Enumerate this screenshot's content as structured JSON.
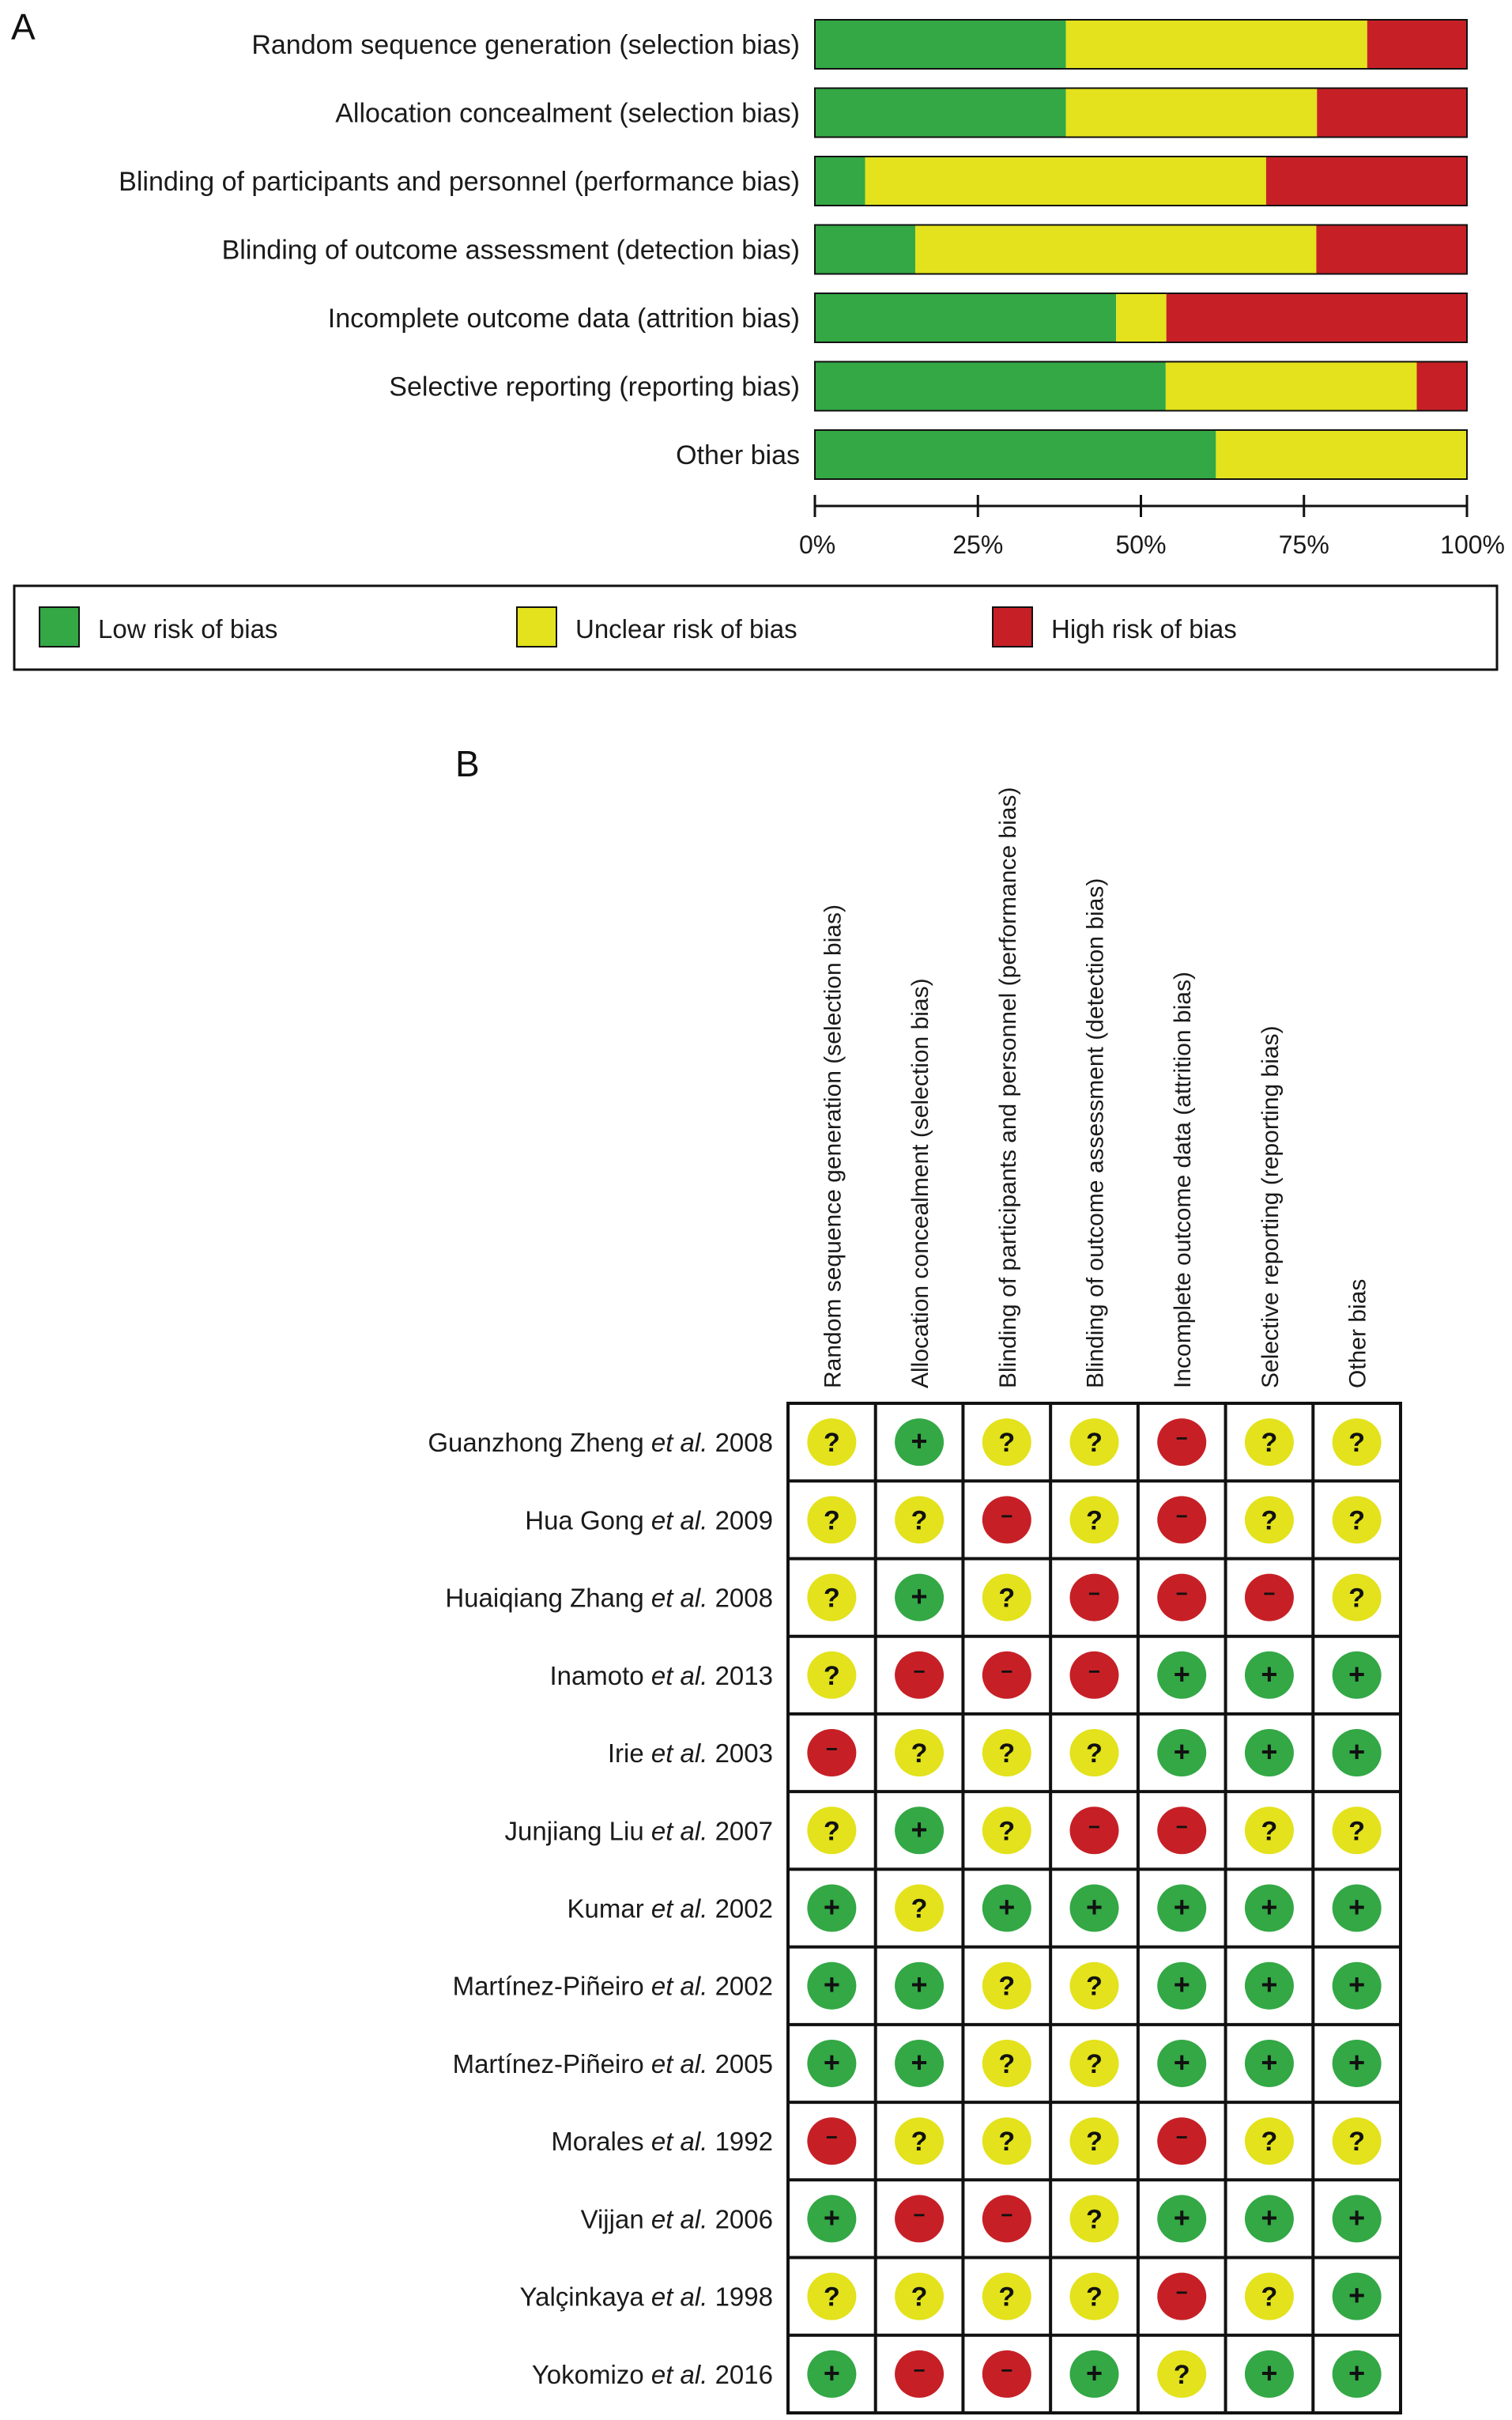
{
  "colors": {
    "low": "#33a845",
    "unclear": "#e3e21c",
    "high": "#c62026",
    "grid": "#111111",
    "text": "#1a1a1a"
  },
  "chart_data": [
    {
      "panel": "A",
      "type": "bar",
      "orientation": "horizontal",
      "stacked": true,
      "categories": [
        "Random sequence generation (selection bias)",
        "Allocation concealment (selection bias)",
        "Blinding of participants and personnel (performance bias)",
        "Blinding of outcome assessment (detection bias)",
        "Incomplete outcome data (attrition bias)",
        "Selective reporting (reporting bias)",
        "Other bias"
      ],
      "series": [
        {
          "name": "Low risk of bias",
          "key": "low",
          "values": [
            38.5,
            38.5,
            7.7,
            15.4,
            46.2,
            53.8,
            61.5
          ]
        },
        {
          "name": "Unclear risk of bias",
          "key": "unclear",
          "values": [
            46.2,
            38.5,
            61.5,
            61.5,
            7.7,
            38.5,
            38.5
          ]
        },
        {
          "name": "High risk of bias",
          "key": "high",
          "values": [
            15.4,
            23.1,
            30.8,
            23.1,
            46.2,
            7.7,
            0
          ]
        }
      ],
      "xlim": [
        0,
        100
      ],
      "xticks": [
        "0%",
        "25%",
        "50%",
        "75%",
        "100%"
      ],
      "legend_position": "bottom"
    },
    {
      "panel": "B",
      "type": "table",
      "columns": [
        "Random sequence generation (selection bias)",
        "Allocation concealment (selection bias)",
        "Blinding of participants and personnel (performance bias)",
        "Blinding of outcome assessment (detection bias)",
        "Incomplete outcome data (attrition bias)",
        "Selective reporting (reporting bias)",
        "Other bias"
      ],
      "legend_symbols": {
        "low": "+",
        "unclear": "?",
        "high": "−"
      },
      "rows": [
        {
          "name": "Guanzhong Zheng",
          "etal": "et al.",
          "year": "2008",
          "ratings": [
            "unclear",
            "low",
            "unclear",
            "unclear",
            "high",
            "unclear",
            "unclear"
          ]
        },
        {
          "name": "Hua Gong",
          "etal": "et al.",
          "year": "2009",
          "ratings": [
            "unclear",
            "unclear",
            "high",
            "unclear",
            "high",
            "unclear",
            "unclear"
          ]
        },
        {
          "name": "Huaiqiang Zhang",
          "etal": "et al.",
          "year": "2008",
          "ratings": [
            "unclear",
            "low",
            "unclear",
            "high",
            "high",
            "high",
            "unclear"
          ]
        },
        {
          "name": "Inamoto",
          "etal": "et al.",
          "year": "2013",
          "ratings": [
            "unclear",
            "high",
            "high",
            "high",
            "low",
            "low",
            "low"
          ]
        },
        {
          "name": "Irie",
          "etal": "et al.",
          "year": "2003",
          "ratings": [
            "high",
            "unclear",
            "unclear",
            "unclear",
            "low",
            "low",
            "low"
          ]
        },
        {
          "name": "Junjiang Liu",
          "etal": "et al.",
          "year": "2007",
          "ratings": [
            "unclear",
            "low",
            "unclear",
            "high",
            "high",
            "unclear",
            "unclear"
          ]
        },
        {
          "name": "Kumar",
          "etal": "et al.",
          "year": "2002",
          "ratings": [
            "low",
            "unclear",
            "low",
            "low",
            "low",
            "low",
            "low"
          ]
        },
        {
          "name": "Martínez-Piñeiro",
          "etal": "et al.",
          "year": "2002",
          "ratings": [
            "low",
            "low",
            "unclear",
            "unclear",
            "low",
            "low",
            "low"
          ]
        },
        {
          "name": "Martínez-Piñeiro",
          "etal": "et al.",
          "year": "2005",
          "ratings": [
            "low",
            "low",
            "unclear",
            "unclear",
            "low",
            "low",
            "low"
          ]
        },
        {
          "name": "Morales",
          "etal": "et al.",
          "year": "1992",
          "ratings": [
            "high",
            "unclear",
            "unclear",
            "unclear",
            "high",
            "unclear",
            "unclear"
          ]
        },
        {
          "name": "Vijjan",
          "etal": "et al.",
          "year": "2006",
          "ratings": [
            "low",
            "high",
            "high",
            "unclear",
            "low",
            "low",
            "low"
          ]
        },
        {
          "name": "Yalçinkaya",
          "etal": "et al.",
          "year": "1998",
          "ratings": [
            "unclear",
            "unclear",
            "unclear",
            "unclear",
            "high",
            "unclear",
            "low"
          ]
        },
        {
          "name": "Yokomizo",
          "etal": "et al.",
          "year": "2016",
          "ratings": [
            "low",
            "high",
            "high",
            "low",
            "unclear",
            "low",
            "low"
          ]
        }
      ]
    }
  ],
  "labels": {
    "panelA": "A",
    "panelB": "B"
  }
}
